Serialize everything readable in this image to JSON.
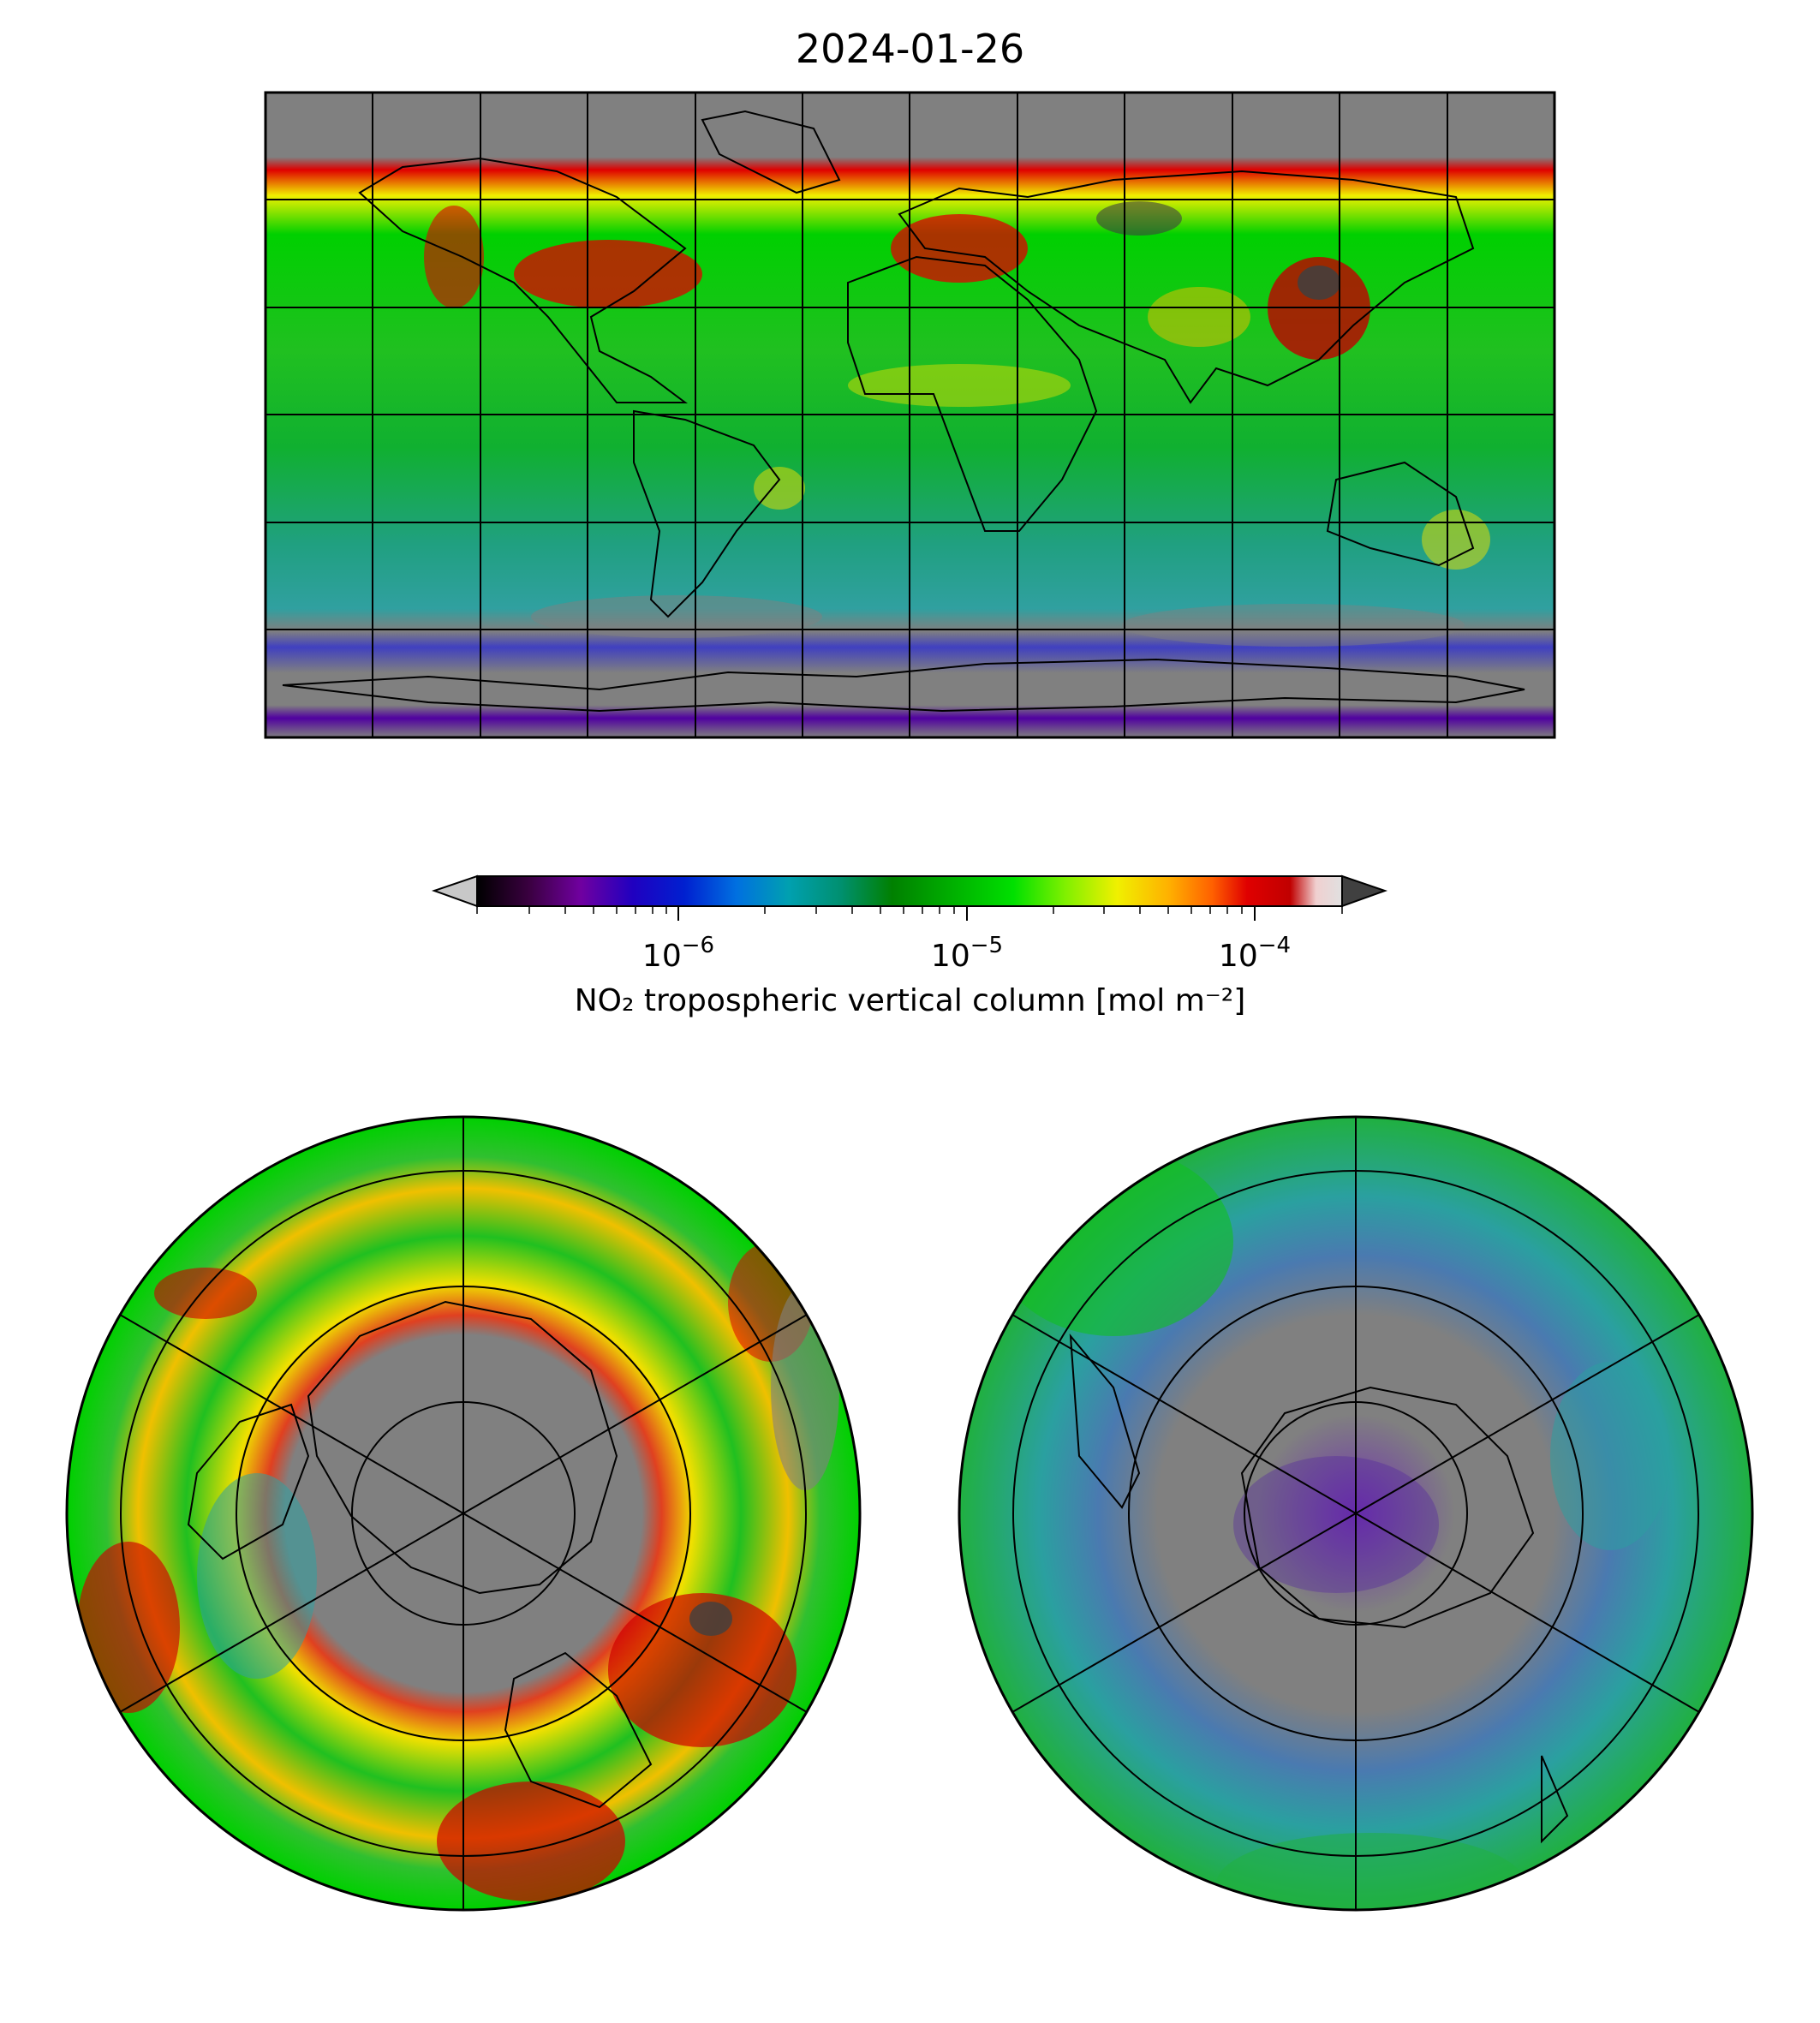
{
  "figure": {
    "title": "2024-01-26"
  },
  "colorbar": {
    "label": "NO₂ tropospheric vertical column [mol m⁻²]",
    "scale": "log",
    "range": [
      2e-07,
      0.0002
    ],
    "extend": "both",
    "under_color": "#c8c8c8",
    "over_color": "#404040",
    "tick_labels": [
      {
        "base": "10",
        "exp": "−6",
        "value": 1e-06
      },
      {
        "base": "10",
        "exp": "−5",
        "value": 1e-05
      },
      {
        "base": "10",
        "exp": "−4",
        "value": 0.0001
      }
    ],
    "colors": [
      "#000000",
      "#3a0040",
      "#7000a0",
      "#2000c0",
      "#0020d0",
      "#0070e0",
      "#00a0b0",
      "#009070",
      "#008000",
      "#00b000",
      "#00e000",
      "#80f000",
      "#f0f000",
      "#ffb000",
      "#ff6000",
      "#e00000",
      "#c00000",
      "#f0d0d0",
      "#e0e0e0"
    ]
  },
  "maps": [
    {
      "name": "global",
      "projection": "plate-carree",
      "no_data_color": "#808080"
    },
    {
      "name": "north-polar",
      "projection": "north-polar-stereographic",
      "no_data_color": "#808080"
    },
    {
      "name": "south-polar",
      "projection": "south-polar-stereographic",
      "no_data_color": "#808080"
    }
  ]
}
